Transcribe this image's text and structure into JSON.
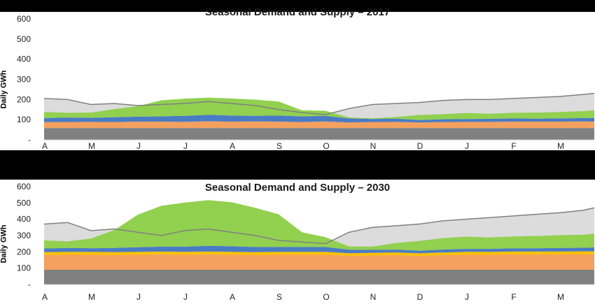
{
  "chart_data": [
    {
      "type": "area",
      "title": "Seasonal Demand and Supply – 2017",
      "ylabel": "Daily GWh",
      "ylim": [
        0,
        600
      ],
      "yticks": [
        "-",
        "100",
        "200",
        "300",
        "400",
        "500",
        "600"
      ],
      "month_labels": [
        "A",
        "M",
        "J",
        "J",
        "A",
        "S",
        "O",
        "N",
        "D",
        "J",
        "F",
        "M"
      ],
      "x_months": [
        0,
        0.5,
        1,
        1.5,
        2,
        2.5,
        3,
        3.5,
        4,
        4.5,
        5,
        5.5,
        6,
        6.5,
        7,
        7.5,
        8,
        8.5,
        9,
        9.5,
        10,
        10.5,
        11,
        11.5,
        11.8
      ],
      "colors": {
        "gray_base": "#808080",
        "orange": "#f4a05f",
        "yellow": "#ffc000",
        "blue": "#4a7cc5",
        "green": "#92d050",
        "demand_fill": "#dcdcdc",
        "demand_line": "#808080"
      },
      "series": [
        {
          "name": "",
          "color": "#808080",
          "values": [
            58,
            58,
            58,
            58,
            58,
            58,
            58,
            58,
            58,
            58,
            58,
            58,
            58,
            58,
            58,
            58,
            58,
            58,
            58,
            58,
            58,
            58,
            58,
            58,
            58
          ]
        },
        {
          "name": "",
          "color": "#f4a05f",
          "values": [
            30,
            30,
            31,
            30,
            32,
            32,
            31,
            34,
            32,
            33,
            32,
            30,
            33,
            28,
            30,
            31,
            28,
            30,
            31,
            31,
            32,
            32,
            32,
            33,
            32
          ]
        },
        {
          "name": "",
          "color": "#4a7cc5",
          "values": [
            20,
            22,
            20,
            24,
            25,
            26,
            30,
            32,
            30,
            28,
            30,
            28,
            28,
            20,
            15,
            16,
            12,
            14,
            14,
            15,
            16,
            15,
            16,
            17,
            18
          ]
        },
        {
          "name": "",
          "color": "#92d050",
          "values": [
            30,
            24,
            26,
            40,
            52,
            80,
            85,
            85,
            85,
            80,
            70,
            30,
            25,
            5,
            3,
            8,
            25,
            25,
            30,
            25,
            28,
            30,
            32,
            34,
            38
          ]
        },
        {
          "name": "",
          "color": "#dcdcdc",
          "values": [
            205,
            200,
            175,
            180,
            170,
            175,
            180,
            190,
            180,
            170,
            150,
            135,
            125,
            155,
            175,
            180,
            185,
            195,
            200,
            200,
            205,
            210,
            215,
            225,
            230
          ]
        }
      ]
    },
    {
      "type": "area",
      "title": "Seasonal Demand and Supply – 2030",
      "ylabel": "Daily GWh",
      "ylim": [
        0,
        600
      ],
      "yticks": [
        "-",
        "100",
        "200",
        "300",
        "400",
        "500",
        "600"
      ],
      "month_labels": [
        "A",
        "M",
        "J",
        "J",
        "A",
        "S",
        "O",
        "N",
        "D",
        "J",
        "F",
        "M"
      ],
      "x_months": [
        0,
        0.5,
        1,
        1.5,
        2,
        2.5,
        3,
        3.5,
        4,
        4.5,
        5,
        5.5,
        6,
        6.5,
        7,
        7.5,
        8,
        8.5,
        9,
        9.5,
        10,
        10.5,
        11,
        11.5,
        11.8
      ],
      "colors": {
        "gray_base": "#808080",
        "orange": "#f4a05f",
        "yellow": "#ffc000",
        "blue": "#4a7cc5",
        "green": "#92d050",
        "demand_fill": "#dcdcdc",
        "demand_line": "#808080"
      },
      "series": [
        {
          "name": "",
          "color": "#808080",
          "values": [
            90,
            90,
            90,
            90,
            90,
            90,
            90,
            90,
            90,
            90,
            90,
            90,
            90,
            90,
            90,
            90,
            90,
            90,
            90,
            90,
            90,
            90,
            90,
            90,
            90
          ]
        },
        {
          "name": "",
          "color": "#f4a05f",
          "values": [
            90,
            92,
            92,
            90,
            92,
            94,
            92,
            94,
            92,
            90,
            92,
            92,
            92,
            85,
            88,
            90,
            85,
            90,
            92,
            92,
            94,
            94,
            94,
            95,
            95
          ]
        },
        {
          "name": "",
          "color": "#ffc000",
          "values": [
            18,
            18,
            18,
            18,
            18,
            18,
            18,
            18,
            18,
            18,
            18,
            18,
            18,
            16,
            16,
            16,
            16,
            16,
            18,
            18,
            18,
            18,
            18,
            18,
            18
          ]
        },
        {
          "name": "",
          "color": "#4a7cc5",
          "values": [
            22,
            24,
            22,
            26,
            28,
            30,
            32,
            35,
            34,
            32,
            30,
            30,
            30,
            22,
            18,
            18,
            16,
            18,
            18,
            18,
            20,
            20,
            22,
            22,
            24
          ]
        },
        {
          "name": "",
          "color": "#92d050",
          "values": [
            50,
            40,
            60,
            110,
            200,
            250,
            270,
            280,
            270,
            240,
            200,
            90,
            60,
            20,
            20,
            40,
            60,
            70,
            75,
            70,
            72,
            75,
            78,
            80,
            85
          ]
        },
        {
          "name": "",
          "color": "#dcdcdc",
          "values": [
            370,
            380,
            330,
            340,
            320,
            300,
            330,
            340,
            320,
            300,
            270,
            260,
            250,
            320,
            350,
            360,
            370,
            390,
            400,
            410,
            420,
            430,
            440,
            455,
            470
          ]
        }
      ]
    }
  ]
}
